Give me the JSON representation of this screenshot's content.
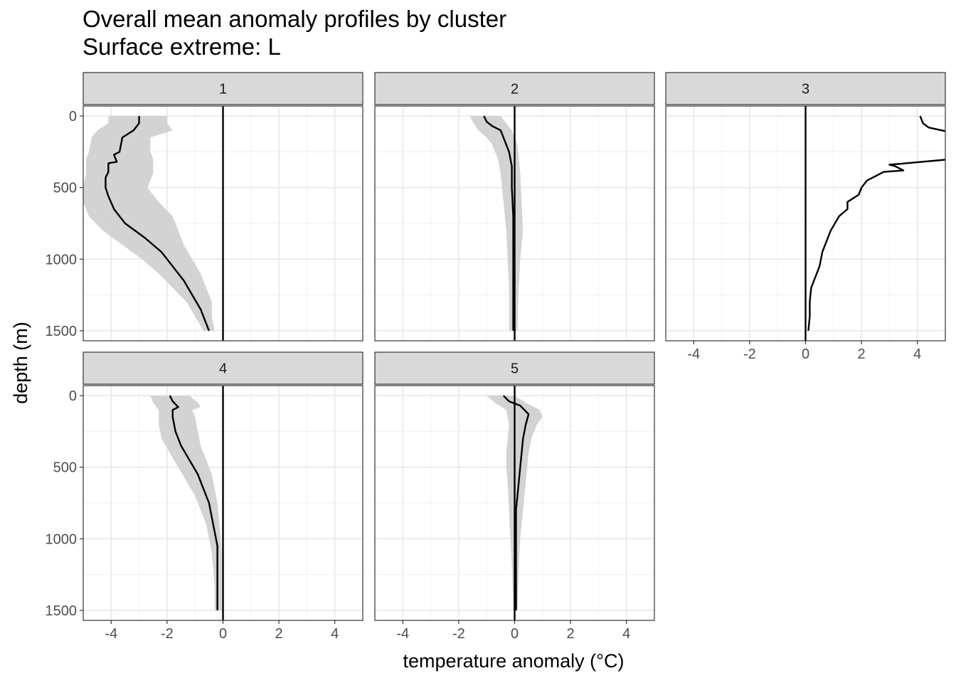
{
  "chart_data": {
    "type": "line",
    "title": "Overall mean anomaly profiles by cluster",
    "subtitle": "Surface extreme: L",
    "xlabel": "temperature anomaly (°C)",
    "ylabel": "depth (m)",
    "xlim": [
      -5,
      5
    ],
    "ylim": [
      1570,
      -70
    ],
    "y_reversed": true,
    "x_ticks": [
      -4,
      -2,
      0,
      2,
      4
    ],
    "x_tick_labels": [
      "-4",
      "-2",
      "0",
      "2",
      "4"
    ],
    "y_ticks": [
      0,
      500,
      1000,
      1500
    ],
    "y_tick_labels": [
      "0",
      "500",
      "1000",
      "1500"
    ],
    "grid": true,
    "legend": "none",
    "reference_line_x": 0,
    "facets": [
      {
        "label": "1",
        "series": {
          "mean": [
            [
              -3.0,
              0
            ],
            [
              -3.0,
              50
            ],
            [
              -3.2,
              100
            ],
            [
              -3.6,
              150
            ],
            [
              -3.7,
              250
            ],
            [
              -3.9,
              270
            ],
            [
              -3.8,
              320
            ],
            [
              -4.1,
              330
            ],
            [
              -4.1,
              360
            ],
            [
              -4.1,
              390
            ],
            [
              -4.2,
              430
            ],
            [
              -4.2,
              500
            ],
            [
              -4.1,
              560
            ],
            [
              -3.9,
              650
            ],
            [
              -3.5,
              750
            ],
            [
              -2.8,
              850
            ],
            [
              -2.2,
              950
            ],
            [
              -1.8,
              1050
            ],
            [
              -1.4,
              1150
            ],
            [
              -1.1,
              1250
            ],
            [
              -0.8,
              1350
            ],
            [
              -0.6,
              1450
            ],
            [
              -0.5,
              1500
            ]
          ],
          "lower": [
            [
              -4.1,
              0
            ],
            [
              -4.1,
              50
            ],
            [
              -4.5,
              100
            ],
            [
              -4.7,
              150
            ],
            [
              -4.8,
              250
            ],
            [
              -4.9,
              300
            ],
            [
              -4.9,
              400
            ],
            [
              -5.0,
              500
            ],
            [
              -5.0,
              600
            ],
            [
              -4.8,
              700
            ],
            [
              -4.3,
              800
            ],
            [
              -3.6,
              900
            ],
            [
              -2.9,
              1000
            ],
            [
              -2.3,
              1100
            ],
            [
              -1.8,
              1200
            ],
            [
              -1.3,
              1300
            ],
            [
              -1.0,
              1400
            ],
            [
              -0.7,
              1500
            ]
          ],
          "upper": [
            [
              -2.0,
              0
            ],
            [
              -2.0,
              50
            ],
            [
              -1.8,
              100
            ],
            [
              -2.6,
              150
            ],
            [
              -2.6,
              250
            ],
            [
              -2.5,
              300
            ],
            [
              -2.5,
              400
            ],
            [
              -2.7,
              500
            ],
            [
              -2.3,
              600
            ],
            [
              -1.8,
              700
            ],
            [
              -1.6,
              800
            ],
            [
              -1.4,
              900
            ],
            [
              -1.1,
              1000
            ],
            [
              -0.8,
              1100
            ],
            [
              -0.6,
              1200
            ],
            [
              -0.4,
              1300
            ],
            [
              -0.4,
              1400
            ],
            [
              -0.3,
              1500
            ]
          ]
        }
      },
      {
        "label": "2",
        "series": {
          "mean": [
            [
              -1.1,
              0
            ],
            [
              -1.0,
              40
            ],
            [
              -0.8,
              70
            ],
            [
              -0.5,
              100
            ],
            [
              -0.4,
              150
            ],
            [
              -0.3,
              200
            ],
            [
              -0.2,
              250
            ],
            [
              -0.1,
              350
            ],
            [
              -0.1,
              500
            ],
            [
              -0.05,
              700
            ],
            [
              -0.05,
              900
            ],
            [
              -0.05,
              1100
            ],
            [
              -0.05,
              1300
            ],
            [
              -0.05,
              1500
            ]
          ],
          "lower": [
            [
              -1.6,
              0
            ],
            [
              -1.5,
              40
            ],
            [
              -1.3,
              100
            ],
            [
              -1.0,
              150
            ],
            [
              -0.8,
              200
            ],
            [
              -0.6,
              300
            ],
            [
              -0.5,
              400
            ],
            [
              -0.4,
              600
            ],
            [
              -0.3,
              800
            ],
            [
              -0.25,
              1000
            ],
            [
              -0.2,
              1200
            ],
            [
              -0.2,
              1500
            ]
          ],
          "upper": [
            [
              -0.5,
              0
            ],
            [
              -0.3,
              50
            ],
            [
              -0.1,
              100
            ],
            [
              0.0,
              150
            ],
            [
              0.1,
              200
            ],
            [
              0.15,
              300
            ],
            [
              0.2,
              400
            ],
            [
              0.25,
              600
            ],
            [
              0.3,
              800
            ],
            [
              0.2,
              1000
            ],
            [
              0.15,
              1200
            ],
            [
              0.1,
              1500
            ]
          ]
        }
      },
      {
        "label": "3",
        "series": {
          "mean": [
            [
              4.1,
              0
            ],
            [
              4.2,
              50
            ],
            [
              4.4,
              80
            ],
            [
              5.1,
              110
            ],
            [
              5.6,
              200
            ],
            [
              5.3,
              300
            ],
            [
              3.6,
              330
            ],
            [
              3.0,
              340
            ],
            [
              3.2,
              350
            ],
            [
              3.5,
              380
            ],
            [
              2.8,
              390
            ],
            [
              2.7,
              400
            ],
            [
              2.2,
              450
            ],
            [
              2.0,
              500
            ],
            [
              1.9,
              550
            ],
            [
              1.5,
              600
            ],
            [
              1.5,
              650
            ],
            [
              1.2,
              700
            ],
            [
              0.9,
              800
            ],
            [
              0.8,
              850
            ],
            [
              0.6,
              950
            ],
            [
              0.5,
              1050
            ],
            [
              0.3,
              1150
            ],
            [
              0.2,
              1200
            ],
            [
              0.15,
              1300
            ],
            [
              0.15,
              1400
            ],
            [
              0.1,
              1500
            ]
          ]
        }
      },
      {
        "label": "4",
        "series": {
          "mean": [
            [
              -1.9,
              0
            ],
            [
              -1.8,
              40
            ],
            [
              -1.6,
              80
            ],
            [
              -1.8,
              100
            ],
            [
              -1.8,
              150
            ],
            [
              -1.7,
              250
            ],
            [
              -1.5,
              350
            ],
            [
              -1.2,
              450
            ],
            [
              -0.9,
              550
            ],
            [
              -0.7,
              650
            ],
            [
              -0.5,
              750
            ],
            [
              -0.4,
              850
            ],
            [
              -0.3,
              950
            ],
            [
              -0.2,
              1050
            ],
            [
              -0.2,
              1150
            ],
            [
              -0.2,
              1250
            ],
            [
              -0.2,
              1350
            ],
            [
              -0.2,
              1500
            ]
          ],
          "lower": [
            [
              -2.6,
              0
            ],
            [
              -2.5,
              50
            ],
            [
              -2.3,
              100
            ],
            [
              -2.3,
              200
            ],
            [
              -2.2,
              300
            ],
            [
              -1.9,
              400
            ],
            [
              -1.6,
              500
            ],
            [
              -1.3,
              600
            ],
            [
              -1.0,
              700
            ],
            [
              -0.8,
              800
            ],
            [
              -0.6,
              900
            ],
            [
              -0.5,
              1000
            ],
            [
              -0.4,
              1100
            ],
            [
              -0.35,
              1200
            ],
            [
              -0.3,
              1350
            ],
            [
              -0.3,
              1500
            ]
          ],
          "upper": [
            [
              -1.2,
              0
            ],
            [
              -0.9,
              50
            ],
            [
              -0.8,
              80
            ],
            [
              -1.1,
              100
            ],
            [
              -1.0,
              150
            ],
            [
              -0.9,
              250
            ],
            [
              -0.8,
              350
            ],
            [
              -0.6,
              450
            ],
            [
              -0.4,
              550
            ],
            [
              -0.3,
              650
            ],
            [
              -0.2,
              750
            ],
            [
              -0.15,
              850
            ],
            [
              -0.1,
              950
            ],
            [
              -0.05,
              1100
            ],
            [
              -0.05,
              1300
            ],
            [
              -0.05,
              1500
            ]
          ]
        }
      },
      {
        "label": "5",
        "series": {
          "mean": [
            [
              -0.4,
              0
            ],
            [
              -0.2,
              40
            ],
            [
              0.2,
              70
            ],
            [
              0.5,
              130
            ],
            [
              0.4,
              200
            ],
            [
              0.3,
              300
            ],
            [
              0.25,
              400
            ],
            [
              0.2,
              500
            ],
            [
              0.15,
              600
            ],
            [
              0.1,
              700
            ],
            [
              0.05,
              800
            ],
            [
              0.05,
              900
            ],
            [
              0.05,
              1000
            ],
            [
              0.05,
              1200
            ],
            [
              0.05,
              1500
            ]
          ],
          "lower": [
            [
              -1.0,
              0
            ],
            [
              -0.7,
              50
            ],
            [
              -0.3,
              100
            ],
            [
              -0.2,
              200
            ],
            [
              -0.25,
              300
            ],
            [
              -0.3,
              400
            ],
            [
              -0.3,
              500
            ],
            [
              -0.25,
              600
            ],
            [
              -0.2,
              800
            ],
            [
              -0.15,
              1000
            ],
            [
              -0.1,
              1200
            ],
            [
              -0.05,
              1500
            ]
          ],
          "upper": [
            [
              0.0,
              0
            ],
            [
              0.4,
              50
            ],
            [
              0.9,
              100
            ],
            [
              1.0,
              150
            ],
            [
              0.8,
              200
            ],
            [
              0.6,
              300
            ],
            [
              0.5,
              400
            ],
            [
              0.45,
              500
            ],
            [
              0.4,
              600
            ],
            [
              0.35,
              700
            ],
            [
              0.3,
              800
            ],
            [
              0.25,
              900
            ],
            [
              0.2,
              1000
            ],
            [
              0.15,
              1200
            ],
            [
              0.1,
              1500
            ]
          ]
        }
      }
    ]
  }
}
